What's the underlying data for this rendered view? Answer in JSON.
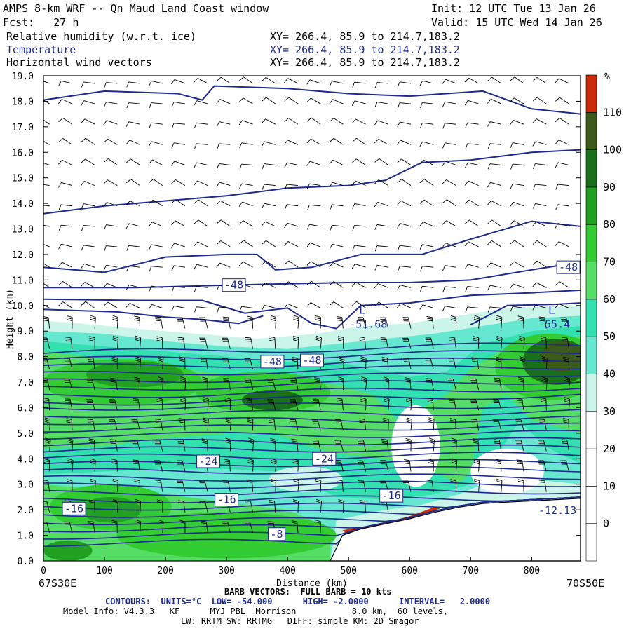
{
  "header": {
    "title": "AMPS 8-km WRF -- Qn Maud Land Coast window",
    "init": "Init: 12 UTC Tue 13 Jan 26",
    "fcst": "Fcst:   27 h",
    "valid": "Valid: 15 UTC Wed 14 Jan 26",
    "fields": [
      {
        "name": "Relative humidity (w.r.t. ice)",
        "xy": "XY= 266.4, 85.9 to 214.7,183.2"
      },
      {
        "name": "Temperature",
        "xy": "XY= 266.4, 85.9 to 214.7,183.2"
      },
      {
        "name": "Horizontal wind vectors",
        "xy": "XY= 266.4, 85.9 to 214.7,183.2"
      }
    ]
  },
  "footer": {
    "left_coord": "67S30E",
    "right_coord": "70S50E",
    "barb_note": "BARB VECTORS:  FULL BARB = 10 kts",
    "contours": "CONTOURS:  UNITS=°C  LOW= -54.000      HIGH= -2.0000      INTERVAL=   2.0000",
    "model_info": "Model Info: V4.3.3   KF      MYJ PBL  Morrison           8.0 km,  60 levels,",
    "model_info2": "LW: RRTM SW: RRTMG   DIFF: simple KM: 2D Smagor"
  },
  "colors": {
    "contour": "#1e2a8c",
    "terrain": "#ffffff",
    "frame": "#000000"
  },
  "chart_data": {
    "type": "heatmap",
    "title": "Relative humidity (w.r.t. ice), Temperature, Horizontal wind vectors",
    "xlabel": "Distance (km)",
    "ylabel": "Height (km)",
    "xlim": [
      0,
      880
    ],
    "ylim": [
      0,
      19
    ],
    "x_ticks": [
      0,
      100,
      200,
      300,
      400,
      500,
      600,
      700,
      800
    ],
    "y_ticks": [
      0.0,
      1.0,
      2.0,
      3.0,
      4.0,
      5.0,
      6.0,
      7.0,
      8.0,
      9.0,
      10.0,
      11.0,
      12.0,
      13.0,
      14.0,
      15.0,
      16.0,
      17.0,
      18.0,
      19.0
    ],
    "colorbar": {
      "unit": "%",
      "levels": [
        0,
        10,
        20,
        30,
        40,
        50,
        60,
        70,
        80,
        90,
        100,
        110
      ],
      "colors": [
        "#ffffff",
        "#ffffff",
        "#ffffff",
        "#ffffff",
        "#ccf5ea",
        "#66e8d0",
        "#33e0b0",
        "#55dd66",
        "#33cc33",
        "#22a022",
        "#1a701a",
        "#3c5a1a",
        "#cc2a0a"
      ]
    },
    "terrain": {
      "x": [
        470,
        490,
        520,
        560,
        600,
        640,
        680,
        720,
        760,
        800,
        840,
        880
      ],
      "z": [
        0.0,
        1.0,
        1.25,
        1.45,
        1.65,
        1.9,
        2.1,
        2.25,
        2.3,
        2.35,
        2.4,
        2.45
      ]
    },
    "contour_labels": [
      {
        "text": "-48",
        "x": 312,
        "z": 10.8
      },
      {
        "text": "-48",
        "x": 860,
        "z": 11.5
      },
      {
        "text": "-48",
        "x": 375,
        "z": 7.8
      },
      {
        "text": "-48",
        "x": 440,
        "z": 7.85
      },
      {
        "text": "-24",
        "x": 270,
        "z": 3.9
      },
      {
        "text": "-24",
        "x": 460,
        "z": 4.0
      },
      {
        "text": "-16",
        "x": 300,
        "z": 2.4
      },
      {
        "text": "-16",
        "x": 570,
        "z": 2.55
      },
      {
        "text": "-16",
        "x": 50,
        "z": 2.05
      },
      {
        "text": "-8",
        "x": 382,
        "z": 1.05
      }
    ],
    "extrema": [
      {
        "symbol": "L",
        "value": "-51.68",
        "x": 570,
        "z": 9.3
      },
      {
        "symbol": "L",
        "value": "-55.4",
        "x": 880,
        "z": 9.3
      },
      {
        "symbol": "",
        "value": "-12.13",
        "x": 880,
        "z": 2.0
      }
    ]
  }
}
